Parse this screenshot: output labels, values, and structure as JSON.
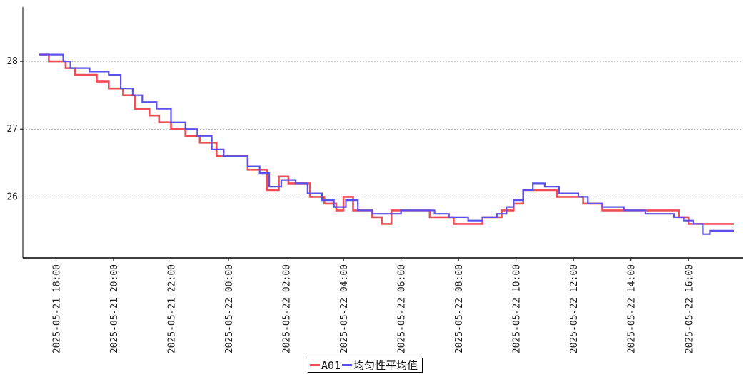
{
  "chart_data": {
    "type": "line",
    "x_start": "2025-05-21 17:25",
    "x_end": "2025-05-22 17:35",
    "x_ticks": [
      "2025-05-21 18:00",
      "2025-05-21 20:00",
      "2025-05-21 22:00",
      "2025-05-22 00:00",
      "2025-05-22 02:00",
      "2025-05-22 04:00",
      "2025-05-22 06:00",
      "2025-05-22 08:00",
      "2025-05-22 10:00",
      "2025-05-22 12:00",
      "2025-05-22 14:00",
      "2025-05-22 16:00"
    ],
    "y_ticks": [
      26,
      27,
      28
    ],
    "ylim": [
      25.1,
      28.8
    ],
    "grid": "horizontal-dashed",
    "legend_position": "bottom-center",
    "series": [
      {
        "name": "A01",
        "color": "#ee4f55",
        "points": [
          [
            "2025-05-21 17:25",
            28.1
          ],
          [
            "2025-05-21 17:40",
            28.1
          ],
          [
            "2025-05-21 17:45",
            28.0
          ],
          [
            "2025-05-21 18:15",
            28.0
          ],
          [
            "2025-05-21 18:20",
            27.9
          ],
          [
            "2025-05-21 18:40",
            27.8
          ],
          [
            "2025-05-21 19:20",
            27.8
          ],
          [
            "2025-05-21 19:25",
            27.7
          ],
          [
            "2025-05-21 19:50",
            27.6
          ],
          [
            "2025-05-21 20:20",
            27.5
          ],
          [
            "2025-05-21 20:45",
            27.3
          ],
          [
            "2025-05-21 21:15",
            27.2
          ],
          [
            "2025-05-21 21:35",
            27.1
          ],
          [
            "2025-05-21 22:00",
            27.0
          ],
          [
            "2025-05-21 22:30",
            26.9
          ],
          [
            "2025-05-21 23:00",
            26.8
          ],
          [
            "2025-05-21 23:35",
            26.6
          ],
          [
            "2025-05-22 00:25",
            26.6
          ],
          [
            "2025-05-22 00:40",
            26.4
          ],
          [
            "2025-05-22 01:05",
            26.4
          ],
          [
            "2025-05-22 01:20",
            26.1
          ],
          [
            "2025-05-22 01:45",
            26.3
          ],
          [
            "2025-05-22 02:05",
            26.2
          ],
          [
            "2025-05-22 02:30",
            26.2
          ],
          [
            "2025-05-22 02:50",
            26.0
          ],
          [
            "2025-05-22 03:20",
            25.9
          ],
          [
            "2025-05-22 03:45",
            25.8
          ],
          [
            "2025-05-22 04:00",
            26.0
          ],
          [
            "2025-05-22 04:20",
            25.8
          ],
          [
            "2025-05-22 05:00",
            25.7
          ],
          [
            "2025-05-22 05:20",
            25.6
          ],
          [
            "2025-05-22 05:40",
            25.8
          ],
          [
            "2025-05-22 06:30",
            25.8
          ],
          [
            "2025-05-22 07:00",
            25.7
          ],
          [
            "2025-05-22 07:50",
            25.6
          ],
          [
            "2025-05-22 08:30",
            25.6
          ],
          [
            "2025-05-22 08:50",
            25.7
          ],
          [
            "2025-05-22 09:20",
            25.7
          ],
          [
            "2025-05-22 09:30",
            25.8
          ],
          [
            "2025-05-22 09:55",
            25.9
          ],
          [
            "2025-05-22 10:15",
            26.1
          ],
          [
            "2025-05-22 10:35",
            26.1
          ],
          [
            "2025-05-22 11:00",
            26.1
          ],
          [
            "2025-05-22 11:25",
            26.0
          ],
          [
            "2025-05-22 12:00",
            26.0
          ],
          [
            "2025-05-22 12:20",
            25.9
          ],
          [
            "2025-05-22 13:00",
            25.8
          ],
          [
            "2025-05-22 13:30",
            25.8
          ],
          [
            "2025-05-22 14:00",
            25.8
          ],
          [
            "2025-05-22 14:40",
            25.8
          ],
          [
            "2025-05-22 15:20",
            25.8
          ],
          [
            "2025-05-22 15:40",
            25.7
          ],
          [
            "2025-05-22 16:00",
            25.6
          ],
          [
            "2025-05-22 16:30",
            25.6
          ],
          [
            "2025-05-22 16:50",
            25.6
          ],
          [
            "2025-05-22 17:05",
            25.6
          ],
          [
            "2025-05-22 17:35",
            25.6
          ]
        ]
      },
      {
        "name": "均匀性平均值",
        "color": "#5b50ee",
        "points": [
          [
            "2025-05-21 17:25",
            28.1
          ],
          [
            "2025-05-21 17:45",
            28.1
          ],
          [
            "2025-05-21 18:15",
            28.0
          ],
          [
            "2025-05-21 18:30",
            27.9
          ],
          [
            "2025-05-21 19:00",
            27.9
          ],
          [
            "2025-05-21 19:10",
            27.85
          ],
          [
            "2025-05-21 19:50",
            27.8
          ],
          [
            "2025-05-21 20:15",
            27.6
          ],
          [
            "2025-05-21 20:40",
            27.5
          ],
          [
            "2025-05-21 21:00",
            27.4
          ],
          [
            "2025-05-21 21:30",
            27.3
          ],
          [
            "2025-05-21 22:00",
            27.1
          ],
          [
            "2025-05-21 22:30",
            27.0
          ],
          [
            "2025-05-21 22:55",
            26.9
          ],
          [
            "2025-05-21 23:25",
            26.7
          ],
          [
            "2025-05-21 23:50",
            26.6
          ],
          [
            "2025-05-22 00:25",
            26.6
          ],
          [
            "2025-05-22 00:40",
            26.45
          ],
          [
            "2025-05-22 01:05",
            26.35
          ],
          [
            "2025-05-22 01:25",
            26.15
          ],
          [
            "2025-05-22 01:50",
            26.25
          ],
          [
            "2025-05-22 02:20",
            26.2
          ],
          [
            "2025-05-22 02:45",
            26.05
          ],
          [
            "2025-05-22 03:15",
            25.95
          ],
          [
            "2025-05-22 03:40",
            25.85
          ],
          [
            "2025-05-22 04:05",
            25.95
          ],
          [
            "2025-05-22 04:30",
            25.8
          ],
          [
            "2025-05-22 05:00",
            25.75
          ],
          [
            "2025-05-22 05:35",
            25.75
          ],
          [
            "2025-05-22 06:00",
            25.8
          ],
          [
            "2025-05-22 06:40",
            25.8
          ],
          [
            "2025-05-22 07:10",
            25.75
          ],
          [
            "2025-05-22 07:40",
            25.7
          ],
          [
            "2025-05-22 08:20",
            25.65
          ],
          [
            "2025-05-22 08:50",
            25.7
          ],
          [
            "2025-05-22 09:20",
            25.75
          ],
          [
            "2025-05-22 09:40",
            25.85
          ],
          [
            "2025-05-22 09:55",
            25.95
          ],
          [
            "2025-05-22 10:15",
            26.1
          ],
          [
            "2025-05-22 10:35",
            26.2
          ],
          [
            "2025-05-22 11:00",
            26.15
          ],
          [
            "2025-05-22 11:30",
            26.05
          ],
          [
            "2025-05-22 12:10",
            26.0
          ],
          [
            "2025-05-22 12:30",
            25.9
          ],
          [
            "2025-05-22 13:00",
            25.85
          ],
          [
            "2025-05-22 13:30",
            25.85
          ],
          [
            "2025-05-22 13:45",
            25.8
          ],
          [
            "2025-05-22 14:30",
            25.75
          ],
          [
            "2025-05-22 15:00",
            25.75
          ],
          [
            "2025-05-22 15:30",
            25.7
          ],
          [
            "2025-05-22 15:50",
            25.65
          ],
          [
            "2025-05-22 16:10",
            25.6
          ],
          [
            "2025-05-22 16:30",
            25.45
          ],
          [
            "2025-05-22 16:45",
            25.5
          ],
          [
            "2025-05-22 17:10",
            25.5
          ],
          [
            "2025-05-22 17:35",
            25.5
          ]
        ]
      }
    ]
  }
}
